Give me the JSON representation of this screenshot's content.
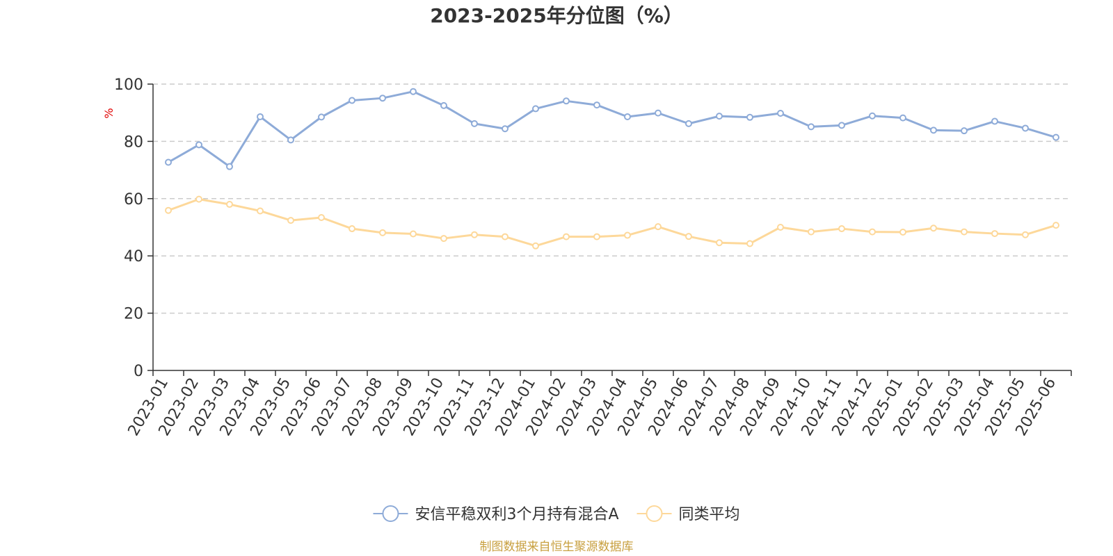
{
  "chart_data": {
    "type": "line",
    "title": "2023-2025年分位图（%）",
    "ylabel": "%",
    "xlabel": "",
    "ylim": [
      0,
      100
    ],
    "yticks": [
      0,
      20,
      40,
      60,
      80,
      100
    ],
    "grid": true,
    "legend_position": "bottom",
    "categories": [
      "2023-01",
      "2023-02",
      "2023-03",
      "2023-04",
      "2023-05",
      "2023-06",
      "2023-07",
      "2023-08",
      "2023-09",
      "2023-10",
      "2023-11",
      "2023-12",
      "2024-01",
      "2024-02",
      "2024-03",
      "2024-04",
      "2024-05",
      "2024-06",
      "2024-07",
      "2024-08",
      "2024-09",
      "2024-10",
      "2024-11",
      "2024-12",
      "2025-01",
      "2025-02",
      "2025-03",
      "2025-04",
      "2025-05",
      "2025-06"
    ],
    "series": [
      {
        "name": "安信平稳双利3个月持有混合A",
        "color": "#8eabd8",
        "values": [
          72.7,
          78.8,
          71.2,
          88.6,
          80.5,
          88.5,
          94.3,
          95.1,
          97.4,
          92.5,
          86.2,
          84.4,
          91.4,
          94.1,
          92.7,
          88.6,
          89.9,
          86.2,
          88.8,
          88.4,
          89.8,
          85.1,
          85.6,
          88.9,
          88.2,
          83.9,
          83.7,
          87.0,
          84.6,
          81.4
        ]
      },
      {
        "name": "同类平均",
        "color": "#fdd89a",
        "values": [
          55.9,
          59.8,
          58.0,
          55.7,
          52.4,
          53.4,
          49.5,
          48.1,
          47.7,
          46.1,
          47.4,
          46.7,
          43.5,
          46.7,
          46.7,
          47.2,
          50.2,
          46.8,
          44.6,
          44.3,
          50.0,
          48.4,
          49.5,
          48.4,
          48.3,
          49.7,
          48.4,
          47.8,
          47.4,
          50.7
        ]
      }
    ]
  },
  "footer": "制图数据来自恒生聚源数据库"
}
